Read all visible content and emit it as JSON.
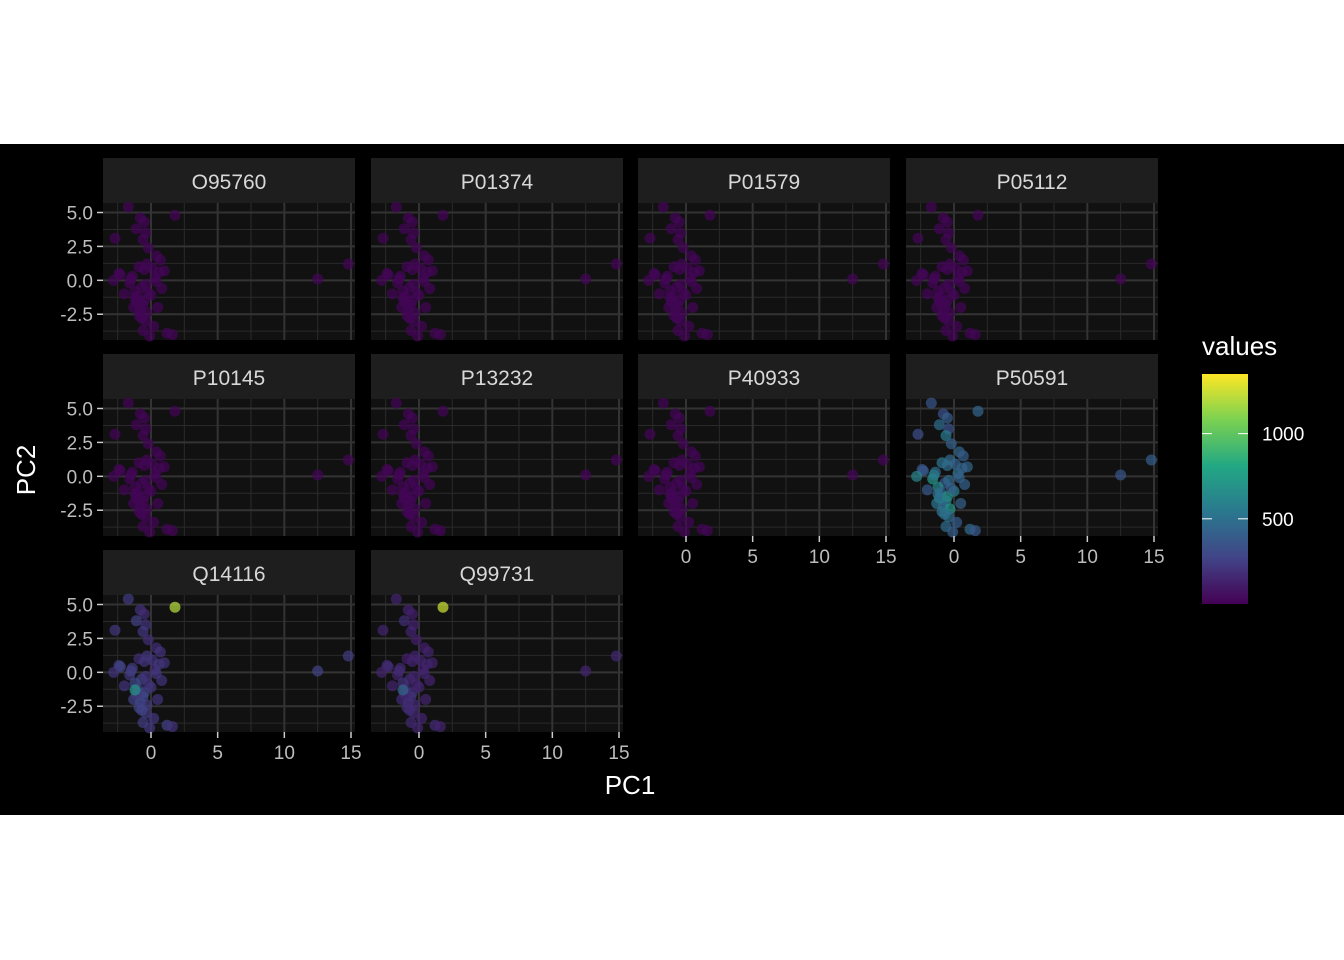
{
  "chart_data": {
    "type": "scatter",
    "title": "",
    "xlabel": "PC1",
    "ylabel": "PC2",
    "xlim": [
      -3.6,
      15.3
    ],
    "ylim": [
      -4.4,
      5.7
    ],
    "x_ticks": [
      0,
      5,
      10,
      15
    ],
    "x_tick_labels": [
      "0",
      "5",
      "10",
      "15"
    ],
    "y_ticks": [
      5.0,
      2.5,
      0.0,
      -2.5
    ],
    "y_tick_labels": [
      "5.0",
      "2.5",
      "0.0",
      "-2.5"
    ],
    "grid": true,
    "legend": {
      "title": "values",
      "placement": "right",
      "colormap": "viridis",
      "range": [
        0,
        1350
      ],
      "ticks": [
        500,
        1000
      ],
      "tick_labels": [
        "500",
        "1000"
      ]
    },
    "facet_layout": {
      "ncol": 4,
      "x_axis_panels": [
        "Q14116",
        "Q99731",
        "P40933",
        "P50591"
      ]
    },
    "points": {
      "pc1": [
        -2.7,
        -2.3,
        -1.7,
        1.8,
        -0.8,
        -0.5,
        -1.1,
        -0.4,
        -0.6,
        -0.2,
        -2.4,
        -2.8,
        -1.4,
        0.4,
        0.7,
        -0.3,
        -0.9,
        0.1,
        -1.6,
        -0.7,
        -0.4,
        0.3,
        0.6,
        -1.2,
        -2.0,
        -1.0,
        -0.5,
        0.0,
        0.8,
        -0.6,
        -1.3,
        -0.8,
        -0.3,
        0.5,
        -0.9,
        -0.4,
        -1.1,
        -0.2,
        -0.7,
        1.0,
        0.4,
        -1.5,
        -0.5,
        -0.6,
        0.2,
        1.2,
        1.6,
        -0.1,
        12.5,
        14.8,
        -1.2
      ],
      "pc2": [
        3.1,
        0.4,
        5.4,
        4.8,
        4.6,
        4.3,
        3.8,
        3.5,
        3.0,
        2.4,
        0.5,
        0.0,
        0.3,
        1.8,
        1.5,
        1.2,
        1.0,
        0.9,
        -0.2,
        -0.5,
        -0.3,
        0.2,
        0.6,
        -0.8,
        -1.0,
        -1.2,
        -1.5,
        -1.1,
        -0.6,
        -1.8,
        -2.0,
        -2.2,
        -2.4,
        -2.0,
        -2.6,
        -3.0,
        -1.6,
        -0.9,
        -2.8,
        0.7,
        -0.1,
        0.1,
        0.8,
        -3.7,
        -3.4,
        -3.9,
        -4.0,
        -4.1,
        0.1,
        1.2,
        -1.3
      ],
      "panels": [
        {
          "id": "O95760",
          "values": [
            20,
            20,
            20,
            20,
            20,
            20,
            20,
            20,
            20,
            20,
            20,
            20,
            20,
            20,
            20,
            20,
            20,
            20,
            20,
            20,
            20,
            20,
            20,
            20,
            20,
            20,
            20,
            20,
            20,
            20,
            20,
            20,
            20,
            20,
            20,
            20,
            20,
            20,
            20,
            20,
            20,
            20,
            20,
            20,
            20,
            20,
            20,
            20,
            20,
            20,
            20
          ]
        },
        {
          "id": "P01374",
          "values": [
            20,
            20,
            20,
            20,
            20,
            20,
            20,
            20,
            20,
            20,
            20,
            20,
            20,
            20,
            20,
            20,
            20,
            20,
            20,
            20,
            20,
            20,
            20,
            20,
            20,
            20,
            20,
            20,
            20,
            20,
            20,
            20,
            20,
            20,
            20,
            20,
            20,
            20,
            20,
            20,
            20,
            20,
            20,
            20,
            20,
            20,
            20,
            20,
            20,
            20,
            20
          ]
        },
        {
          "id": "P01579",
          "values": [
            20,
            20,
            20,
            20,
            20,
            20,
            20,
            20,
            20,
            20,
            20,
            20,
            20,
            20,
            20,
            20,
            20,
            20,
            20,
            20,
            20,
            20,
            20,
            20,
            20,
            20,
            20,
            20,
            20,
            20,
            20,
            20,
            20,
            20,
            20,
            20,
            20,
            20,
            20,
            20,
            20,
            20,
            20,
            20,
            20,
            20,
            20,
            20,
            20,
            20,
            20
          ]
        },
        {
          "id": "P05112",
          "values": [
            20,
            20,
            20,
            20,
            20,
            20,
            20,
            20,
            20,
            20,
            20,
            20,
            20,
            20,
            20,
            20,
            20,
            20,
            20,
            20,
            20,
            20,
            20,
            20,
            20,
            20,
            20,
            20,
            20,
            20,
            20,
            20,
            20,
            20,
            20,
            20,
            20,
            20,
            20,
            20,
            20,
            20,
            20,
            20,
            20,
            20,
            20,
            20,
            20,
            20,
            20
          ]
        },
        {
          "id": "P10145",
          "values": [
            20,
            20,
            20,
            20,
            20,
            20,
            20,
            20,
            20,
            20,
            20,
            20,
            20,
            20,
            20,
            20,
            20,
            20,
            20,
            20,
            20,
            20,
            20,
            20,
            20,
            20,
            20,
            20,
            20,
            20,
            20,
            20,
            20,
            20,
            20,
            20,
            20,
            20,
            20,
            20,
            20,
            20,
            20,
            20,
            20,
            20,
            20,
            20,
            20,
            20,
            20
          ]
        },
        {
          "id": "P13232",
          "values": [
            20,
            20,
            20,
            20,
            20,
            20,
            20,
            20,
            20,
            20,
            20,
            20,
            20,
            20,
            20,
            20,
            20,
            20,
            20,
            20,
            20,
            20,
            20,
            20,
            20,
            20,
            20,
            20,
            20,
            20,
            20,
            20,
            20,
            20,
            20,
            20,
            20,
            20,
            20,
            20,
            20,
            20,
            20,
            20,
            20,
            20,
            20,
            20,
            20,
            20,
            20
          ]
        },
        {
          "id": "P40933",
          "values": [
            20,
            20,
            20,
            20,
            20,
            20,
            20,
            20,
            20,
            20,
            20,
            20,
            20,
            20,
            20,
            20,
            20,
            20,
            20,
            20,
            20,
            20,
            20,
            20,
            20,
            20,
            20,
            20,
            20,
            20,
            20,
            20,
            20,
            20,
            20,
            20,
            20,
            20,
            20,
            20,
            20,
            20,
            20,
            20,
            20,
            20,
            20,
            20,
            20,
            20,
            20
          ]
        },
        {
          "id": "P50591",
          "values": [
            320,
            420,
            360,
            440,
            330,
            400,
            480,
            350,
            540,
            420,
            360,
            600,
            480,
            450,
            400,
            460,
            520,
            420,
            700,
            380,
            460,
            500,
            420,
            640,
            380,
            440,
            700,
            560,
            420,
            600,
            520,
            460,
            680,
            420,
            520,
            480,
            560,
            420,
            500,
            440,
            420,
            540,
            480,
            460,
            400,
            460,
            380,
            400,
            360,
            400,
            500
          ]
        },
        {
          "id": "Q14116",
          "values": [
            220,
            280,
            240,
            1200,
            200,
            180,
            260,
            200,
            220,
            180,
            260,
            200,
            240,
            180,
            200,
            220,
            180,
            200,
            220,
            260,
            200,
            180,
            220,
            300,
            200,
            260,
            280,
            220,
            200,
            300,
            260,
            280,
            240,
            200,
            260,
            240,
            220,
            200,
            260,
            200,
            220,
            240,
            200,
            240,
            220,
            260,
            200,
            220,
            260,
            240,
            700
          ]
        },
        {
          "id": "Q99731",
          "values": [
            150,
            180,
            150,
            1250,
            140,
            120,
            180,
            140,
            150,
            120,
            170,
            140,
            160,
            120,
            140,
            150,
            120,
            140,
            150,
            170,
            140,
            120,
            150,
            200,
            140,
            170,
            190,
            150,
            140,
            200,
            170,
            190,
            160,
            140,
            170,
            160,
            150,
            140,
            170,
            140,
            150,
            160,
            140,
            160,
            150,
            170,
            140,
            150,
            150,
            160,
            450
          ]
        }
      ]
    }
  }
}
